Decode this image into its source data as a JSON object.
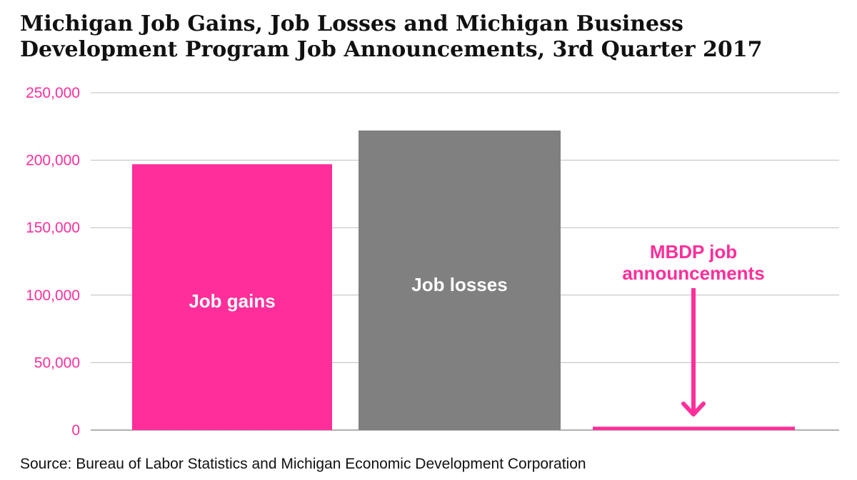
{
  "title_line1": "Michigan Job Gains, Job Losses and Michigan Business",
  "title_line2": "Development Program Job Announcements, 3rd Quarter 2017",
  "source": "Source: Bureau of Labor Statistics and Michigan Economic Development Corporation",
  "colors": {
    "pink": "#ff2e9a",
    "gray": "#808080",
    "grid": "#bbbbbb",
    "axis": "#999999",
    "label_white": "#ffffff"
  },
  "chart_data": {
    "type": "bar",
    "title": "Michigan Job Gains, Job Losses and Michigan Business Development Program Job Announcements, 3rd Quarter 2017",
    "xlabel": "",
    "ylabel": "",
    "ylim": [
      0,
      250000
    ],
    "yticks": [
      0,
      50000,
      100000,
      150000,
      200000,
      250000
    ],
    "ytick_labels": [
      "0",
      "50,000",
      "100,000",
      "150,000",
      "200,000",
      "250,000"
    ],
    "grid": true,
    "categories": [
      "Job gains",
      "Job losses",
      "MBDP job announcements"
    ],
    "values": [
      197000,
      222000,
      2500
    ],
    "bar_colors": [
      "#ff2e9a",
      "#808080",
      "#ff2e9a"
    ],
    "annotations": [
      {
        "text_lines": [
          "MBDP job",
          "announcements"
        ],
        "target": "MBDP job announcements",
        "arrow": true
      }
    ]
  }
}
